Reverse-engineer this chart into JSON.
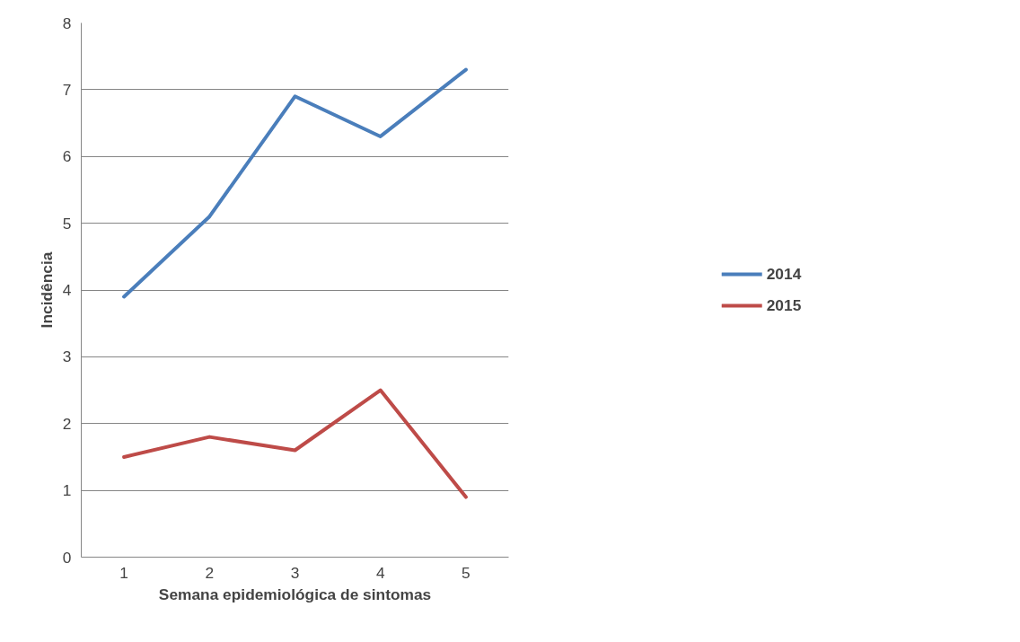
{
  "chart_data": {
    "type": "line",
    "xlabel": "Semana epidemiológica de sintomas",
    "ylabel": "Incidência",
    "categories": [
      "1",
      "2",
      "3",
      "4",
      "5"
    ],
    "series": [
      {
        "name": "2014",
        "color": "#4a7ebb",
        "values": [
          3.9,
          5.1,
          6.9,
          6.3,
          7.3
        ]
      },
      {
        "name": "2015",
        "color": "#be4b48",
        "values": [
          1.5,
          1.8,
          1.6,
          2.5,
          0.9
        ]
      }
    ],
    "ylim": [
      0,
      8
    ],
    "yticks": [
      0,
      1,
      2,
      3,
      4,
      5,
      6,
      7,
      8
    ],
    "grid": "y",
    "legend": "right",
    "marker": "none",
    "line_style": "solid"
  }
}
